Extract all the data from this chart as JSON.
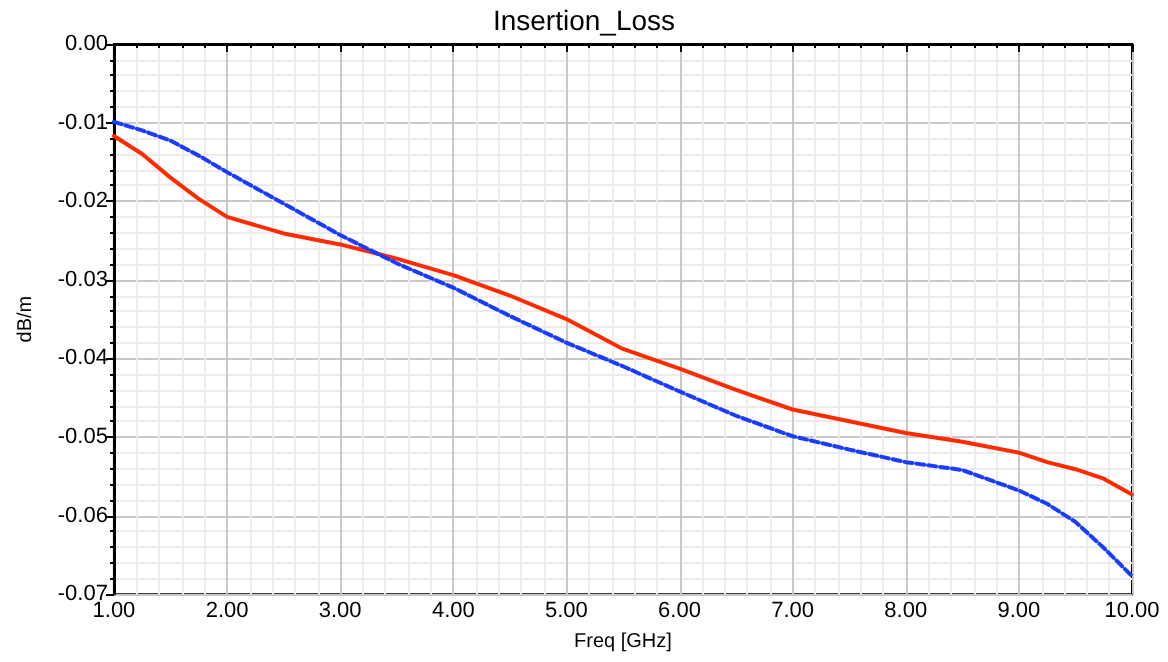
{
  "chart_data": {
    "type": "line",
    "title": "Insertion_Loss",
    "xlabel": "Freq [GHz]",
    "ylabel": "dB/m",
    "x": [
      1,
      1.25,
      1.5,
      1.75,
      2,
      2.5,
      3,
      3.5,
      4,
      4.5,
      5,
      5.5,
      6,
      6.5,
      7,
      7.5,
      8,
      8.5,
      9,
      9.25,
      9.5,
      9.75,
      10
    ],
    "series": [
      {
        "color": "#ff2a00",
        "line_style": "solid",
        "values": [
          -0.0117,
          -0.014,
          -0.017,
          -0.0197,
          -0.022,
          -0.0241,
          -0.0255,
          -0.0273,
          -0.0294,
          -0.032,
          -0.035,
          -0.0388,
          -0.0413,
          -0.044,
          -0.0465,
          -0.048,
          -0.0495,
          -0.0506,
          -0.052,
          -0.0532,
          -0.0541,
          -0.0553,
          -0.0573
        ]
      },
      {
        "color": "#1a3cff",
        "line_style": "dashed",
        "values": [
          -0.0099,
          -0.011,
          -0.0123,
          -0.0142,
          -0.0163,
          -0.0203,
          -0.0243,
          -0.0279,
          -0.031,
          -0.0346,
          -0.038,
          -0.041,
          -0.0442,
          -0.0473,
          -0.0499,
          -0.0516,
          -0.0532,
          -0.0542,
          -0.0568,
          -0.0585,
          -0.0608,
          -0.0641,
          -0.0677
        ]
      }
    ],
    "xlim": [
      1,
      10
    ],
    "xticks": [
      {
        "value": 1,
        "label": "1.00"
      },
      {
        "value": 2,
        "label": "2.00"
      },
      {
        "value": 3,
        "label": "3.00"
      },
      {
        "value": 4,
        "label": "4.00"
      },
      {
        "value": 5,
        "label": "5.00"
      },
      {
        "value": 6,
        "label": "6.00"
      },
      {
        "value": 7,
        "label": "7.00"
      },
      {
        "value": 8,
        "label": "8.00"
      },
      {
        "value": 9,
        "label": "9.00"
      },
      {
        "value": 10,
        "label": "10.00"
      }
    ],
    "ylim": [
      -0.07,
      0
    ],
    "yticks": [
      {
        "value": -0.07,
        "label": "-0.07"
      },
      {
        "value": -0.06,
        "label": "-0.06"
      },
      {
        "value": -0.05,
        "label": "-0.05"
      },
      {
        "value": -0.04,
        "label": "-0.04"
      },
      {
        "value": -0.03,
        "label": "-0.03"
      },
      {
        "value": -0.02,
        "label": "-0.02"
      },
      {
        "value": -0.01,
        "label": "-0.01"
      },
      {
        "value": 0,
        "label": "0.00"
      }
    ],
    "grid": true,
    "marker": "none"
  }
}
